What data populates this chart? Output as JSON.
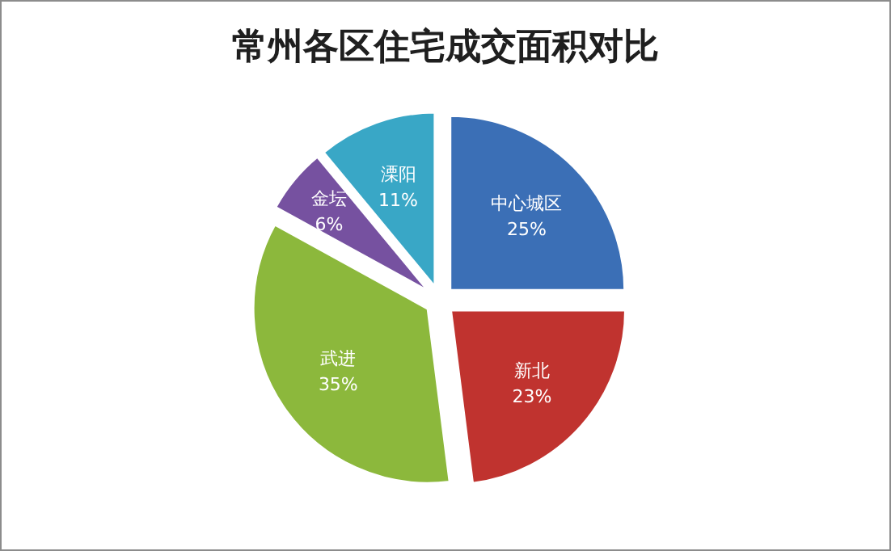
{
  "chart_data": {
    "type": "pie",
    "title": "常州各区住宅成交面积对比",
    "categories": [
      "中心城区",
      "新北",
      "武进",
      "金坛",
      "溧阳"
    ],
    "values": [
      25,
      23,
      35,
      6,
      11
    ],
    "value_labels": [
      "25%",
      "23%",
      "35%",
      "6%",
      "11%"
    ],
    "colors": [
      "#3b6fb6",
      "#c0332f",
      "#8cb83c",
      "#7651a0",
      "#39a7c6"
    ]
  }
}
